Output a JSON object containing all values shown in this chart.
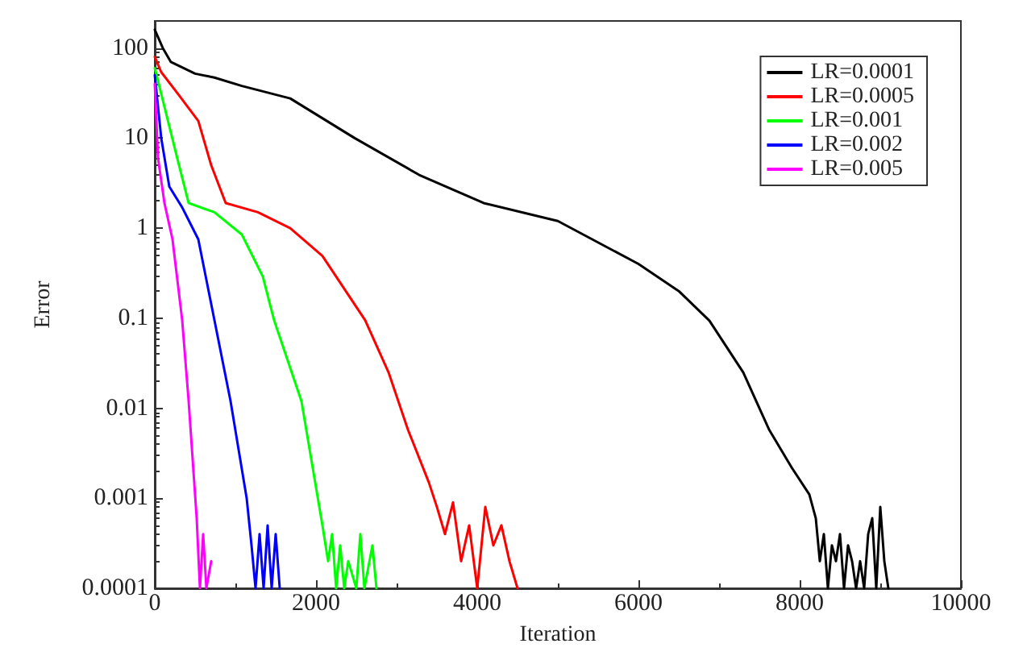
{
  "chart_data": {
    "type": "line",
    "xlabel": "Iteration",
    "ylabel": "Error",
    "log": "y",
    "xlim": [
      0,
      10000
    ],
    "xticks": [
      0,
      2000,
      4000,
      6000,
      8000,
      10000
    ],
    "ylim": [
      0.0001,
      200
    ],
    "yticks": [
      0.0001,
      0.001,
      0.01,
      0.1,
      1,
      10,
      100
    ],
    "grid": false,
    "legend": "top right",
    "marker": "none",
    "line_style": "solid",
    "series": [
      {
        "name": "LR=0.0001",
        "color": "#000000",
        "x": [
          0,
          100,
          200,
          500,
          740,
          1080,
          1680,
          2480,
          3280,
          4080,
          5000,
          6000,
          6500,
          6880,
          7300,
          7620,
          7900,
          8120,
          8200,
          8250,
          8300,
          8350,
          8400,
          8450,
          8500,
          8550,
          8600,
          8650,
          8700,
          8750,
          8800,
          8850,
          8900,
          8950,
          9000,
          9050,
          9100
        ],
        "values": [
          160,
          100,
          70,
          52,
          47,
          38,
          27.6,
          10,
          3.9,
          1.9,
          1.2,
          0.4,
          0.2,
          0.094,
          0.025,
          0.0058,
          0.0022,
          0.0011,
          0.0006,
          0.0002,
          0.0004,
          0.0001,
          0.0003,
          0.0002,
          0.0004,
          0.0001,
          0.0003,
          0.0002,
          0.0001,
          0.0002,
          0.0001,
          0.0004,
          0.0006,
          0.0001,
          0.0008,
          0.0002,
          0.0001
        ]
      },
      {
        "name": "LR=0.0005",
        "color": "#ff0000",
        "x": [
          0,
          80,
          300,
          540,
          700,
          880,
          1280,
          1680,
          2080,
          2610,
          2900,
          3140,
          3400,
          3500,
          3600,
          3700,
          3800,
          3900,
          4000,
          4100,
          4200,
          4300,
          4400,
          4500
        ],
        "values": [
          80,
          54,
          30,
          15.5,
          5,
          1.9,
          1.5,
          1.0,
          0.49,
          0.095,
          0.025,
          0.0058,
          0.0015,
          0.0008,
          0.0004,
          0.0009,
          0.0002,
          0.0005,
          0.0001,
          0.0008,
          0.0003,
          0.0005,
          0.0002,
          0.0001
        ]
      },
      {
        "name": "LR=0.001",
        "color": "#00ff00",
        "x": [
          0,
          80,
          280,
          420,
          740,
          1080,
          1340,
          1480,
          1820,
          2080,
          2150,
          2200,
          2250,
          2300,
          2350,
          2400,
          2500,
          2550,
          2600,
          2700,
          2750
        ],
        "values": [
          60,
          31,
          5.9,
          1.9,
          1.5,
          0.85,
          0.29,
          0.095,
          0.0119,
          0.0005,
          0.0002,
          0.0004,
          0.0001,
          0.0003,
          0.0001,
          0.0002,
          0.0001,
          0.0004,
          0.0001,
          0.0003,
          0.0001
        ]
      },
      {
        "name": "LR=0.002",
        "color": "#0000ff",
        "x": [
          0,
          80,
          180,
          340,
          540,
          740,
          940,
          1140,
          1200,
          1250,
          1300,
          1350,
          1400,
          1450,
          1500,
          1550
        ],
        "values": [
          50,
          10,
          2.9,
          1.7,
          0.75,
          0.095,
          0.012,
          0.001,
          0.0003,
          0.0001,
          0.0004,
          0.0001,
          0.0005,
          0.0001,
          0.0004,
          0.0001
        ]
      },
      {
        "name": "LR=0.005",
        "color": "#ff00ff",
        "x": [
          0,
          40,
          120,
          220,
          340,
          420,
          520,
          560,
          600,
          640,
          700
        ],
        "values": [
          40,
          6,
          1.9,
          0.75,
          0.095,
          0.012,
          0.0006,
          0.0001,
          0.0004,
          0.0001,
          0.0002
        ]
      }
    ]
  }
}
